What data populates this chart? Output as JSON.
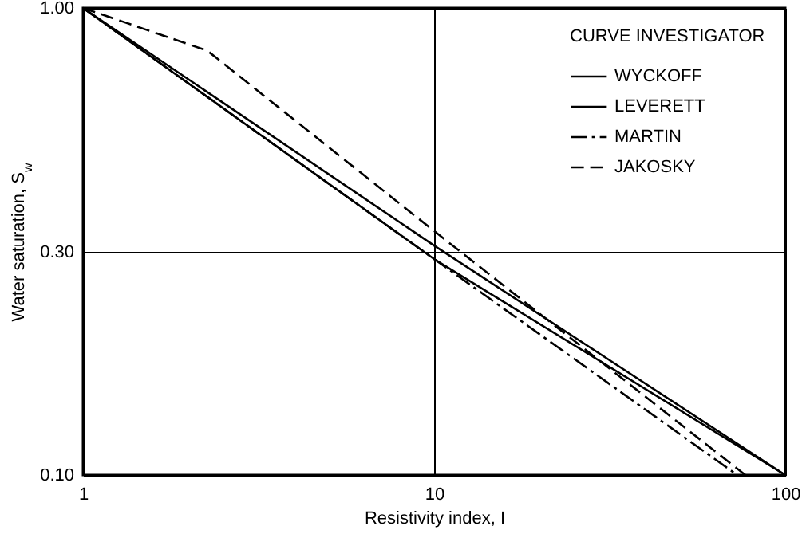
{
  "chart_data": {
    "type": "line",
    "xlabel": "Resistivity index, I",
    "ylabel": "Water saturation, S$_{w}$",
    "legend_title": "CURVE INVESTIGATOR",
    "log": "xy",
    "grid": true,
    "legend": "top right",
    "marker": "none",
    "xlim": [
      1,
      100
    ],
    "xticks": [
      1,
      10,
      100
    ],
    "ylim": [
      0.1,
      1
    ],
    "yticks": [
      {
        "value": 0.1,
        "label": "0.10"
      },
      {
        "value": 0.3,
        "label": "0.30"
      },
      {
        "value": 1,
        "label": "1.00"
      }
    ],
    "series": [
      {
        "name": "WYCKOFF",
        "color": "#000000",
        "line_style": "solid",
        "x": [
          1,
          10,
          100
        ],
        "values": [
          1,
          0.29,
          0.1
        ]
      },
      {
        "name": "LEVERETT",
        "color": "#000000",
        "line_style": "solid",
        "x": [
          1,
          10,
          100
        ],
        "values": [
          1,
          0.31,
          0.1
        ]
      },
      {
        "name": "MARTIN",
        "color": "#000000",
        "line_style": "dashdot",
        "x": [
          1,
          10,
          73
        ],
        "values": [
          1,
          0.29,
          0.1
        ]
      },
      {
        "name": "JAKOSKY",
        "color": "#000000",
        "line_style": "dashed",
        "x": [
          1,
          2.26,
          10,
          77
        ],
        "values": [
          1,
          0.81,
          0.333,
          0.1
        ]
      }
    ]
  }
}
